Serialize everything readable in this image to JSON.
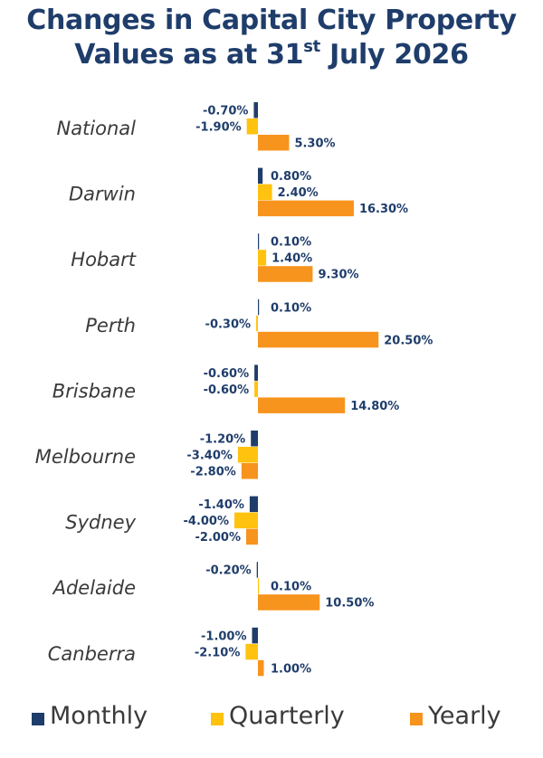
{
  "title_line1": "Changes in Capital City Property",
  "title_line2_pre": "Values as at 31",
  "title_line2_sup": "st",
  "title_line2_post": " July 2026",
  "colors": {
    "monthly": "#1f3d6b",
    "quarterly": "#ffc20e",
    "yearly": "#f7941d",
    "label": "#1f3d6b",
    "city": "#3a3a3a"
  },
  "chart_data": {
    "type": "bar",
    "orientation": "horizontal",
    "categories": [
      "National",
      "Darwin",
      "Hobart",
      "Perth",
      "Brisbane",
      "Melbourne",
      "Sydney",
      "Adelaide",
      "Canberra"
    ],
    "series": [
      {
        "name": "Monthly",
        "values": [
          -0.7,
          0.8,
          0.1,
          0.1,
          -0.6,
          -1.2,
          -1.4,
          -0.2,
          -1.0
        ],
        "labels": [
          "-0.70%",
          "0.80%",
          "0.10%",
          "0.10%",
          "-0.60%",
          "-1.20%",
          "-1.40%",
          "-0.20%",
          "-1.00%"
        ]
      },
      {
        "name": "Quarterly",
        "values": [
          -1.9,
          2.4,
          1.4,
          -0.3,
          -0.6,
          -3.4,
          -4.0,
          0.1,
          -2.1
        ],
        "labels": [
          "-1.90%",
          "2.40%",
          "1.40%",
          "-0.30%",
          "-0.60%",
          "-3.40%",
          "-4.00%",
          "0.10%",
          "-2.10%"
        ]
      },
      {
        "name": "Yearly",
        "values": [
          5.3,
          16.3,
          9.3,
          20.5,
          14.8,
          -2.8,
          -2.0,
          10.5,
          1.0
        ],
        "labels": [
          "5.30%",
          "16.30%",
          "9.30%",
          "20.50%",
          "14.80%",
          "-2.80%",
          "-2.00%",
          "10.50%",
          "1.00%"
        ]
      }
    ],
    "legend_position": "bottom",
    "grid": false
  }
}
